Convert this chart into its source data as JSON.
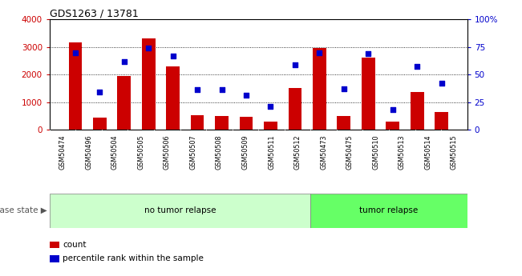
{
  "title": "GDS1263 / 13781",
  "categories": [
    "GSM50474",
    "GSM50496",
    "GSM50504",
    "GSM50505",
    "GSM50506",
    "GSM50507",
    "GSM50508",
    "GSM50509",
    "GSM50511",
    "GSM50512",
    "GSM50473",
    "GSM50475",
    "GSM50510",
    "GSM50513",
    "GSM50514",
    "GSM50515"
  ],
  "bar_values": [
    3150,
    450,
    1950,
    3300,
    2300,
    530,
    510,
    470,
    300,
    1520,
    2950,
    510,
    2600,
    280,
    1380,
    650
  ],
  "dot_values_pct": [
    70,
    34,
    62,
    74,
    67,
    36,
    36,
    31,
    21,
    59,
    70,
    37,
    69,
    18,
    57,
    42
  ],
  "bar_color": "#cc0000",
  "dot_color": "#0000cc",
  "ylim_left": [
    0,
    4000
  ],
  "ylim_right": [
    0,
    100
  ],
  "yticks_left": [
    0,
    1000,
    2000,
    3000,
    4000
  ],
  "yticks_right": [
    0,
    25,
    50,
    75,
    100
  ],
  "yticklabels_right": [
    "0",
    "25",
    "50",
    "75",
    "100%"
  ],
  "no_tumor_count": 10,
  "tumor_count": 6,
  "label_no_tumor": "no tumor relapse",
  "label_tumor": "tumor relapse",
  "label_disease_state": "disease state",
  "legend_count": "count",
  "legend_pct": "percentile rank within the sample",
  "bg_color_notumor": "#ccffcc",
  "bg_color_tumor": "#66ff66",
  "xticklabel_bg": "#d8d8d8"
}
